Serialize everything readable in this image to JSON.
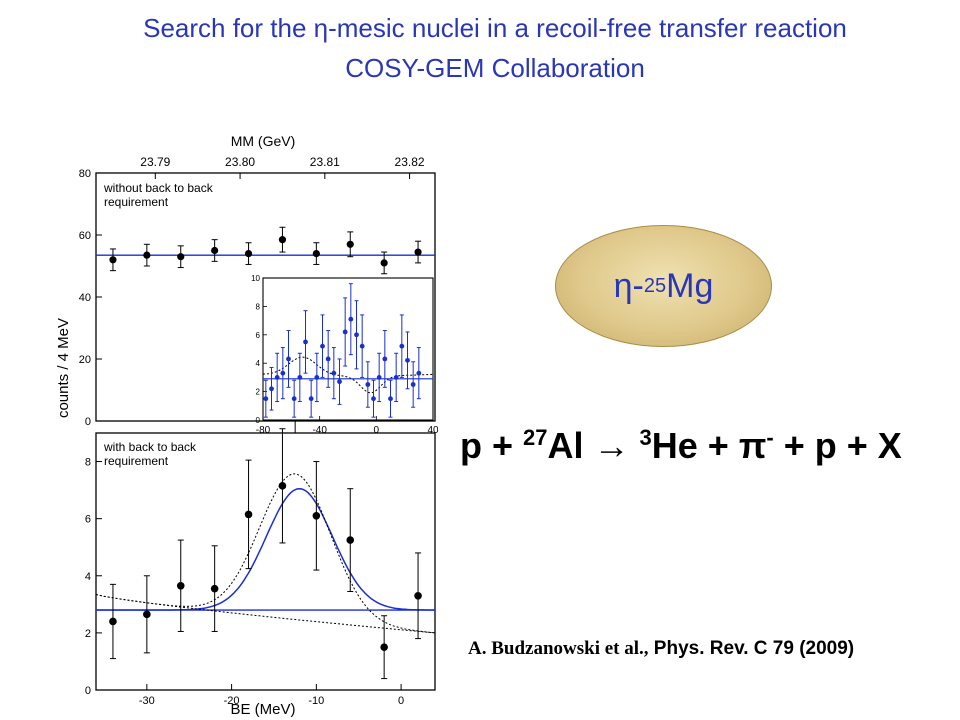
{
  "slide": {
    "title_line1": "Search for the η-mesic nuclei in a recoil-free transfer reaction",
    "title_line2": "COSY-GEM Collaboration",
    "oval": {
      "prefix": "η-",
      "mass": "25",
      "element": "Mg"
    },
    "reaction": {
      "p1": "p + ",
      "al_mass": "27",
      "p2": "Al → ",
      "he_mass": "3",
      "p3": "He + π",
      "pi_charge": "-",
      "p4": " + p + X"
    },
    "reference": {
      "authors": "A. Budzanowski et al.,",
      "journal": " Phys. Rev. C 79 (2009)"
    },
    "colors": {
      "title": "#2a36b8",
      "fit": "#1a2fd0",
      "inset_points": "#1a2fd0"
    }
  },
  "chart_data": [
    {
      "type": "scatter",
      "panel": "top",
      "annotation": "without back to back\nrequirement",
      "top_axis_label": "MM (GeV)",
      "top_ticks": [
        "23.79",
        "23.80",
        "23.81",
        "23.82"
      ],
      "ylabel": "counts / 4 MeV",
      "xlim": [
        -36,
        4
      ],
      "ylim": [
        0,
        80
      ],
      "yticks": [
        0,
        20,
        40,
        60,
        80
      ],
      "points": [
        {
          "x": -34,
          "y": 52,
          "err": 3.5
        },
        {
          "x": -30,
          "y": 53.5,
          "err": 3.5
        },
        {
          "x": -26,
          "y": 53,
          "err": 3.5
        },
        {
          "x": -22,
          "y": 55,
          "err": 3.5
        },
        {
          "x": -18,
          "y": 54,
          "err": 3.5
        },
        {
          "x": -14,
          "y": 58.5,
          "err": 4
        },
        {
          "x": -10,
          "y": 54,
          "err": 3.5
        },
        {
          "x": -6,
          "y": 57,
          "err": 4
        },
        {
          "x": -2,
          "y": 51,
          "err": 3.5
        },
        {
          "x": 2,
          "y": 54.5,
          "err": 3.5
        }
      ],
      "fit_level": 53.5
    },
    {
      "type": "scatter",
      "panel": "inset",
      "xlim": [
        -80,
        40
      ],
      "ylim": [
        0,
        10
      ],
      "xticks": [
        -80,
        -40,
        0,
        40
      ],
      "xtick_labels": [
        "-80",
        "-40",
        "0",
        "40"
      ],
      "yticks": [
        0,
        2,
        4,
        6,
        8,
        10
      ],
      "points": [
        {
          "x": -78,
          "y": 1.5,
          "err": 1.3
        },
        {
          "x": -74,
          "y": 2.2,
          "err": 1.5
        },
        {
          "x": -70,
          "y": 3,
          "err": 1.7
        },
        {
          "x": -66,
          "y": 3.3,
          "err": 1.8
        },
        {
          "x": -62,
          "y": 4.3,
          "err": 2
        },
        {
          "x": -58,
          "y": 1.5,
          "err": 1.3
        },
        {
          "x": -54,
          "y": 3,
          "err": 1.7
        },
        {
          "x": -50,
          "y": 5.5,
          "err": 2.2
        },
        {
          "x": -46,
          "y": 1.5,
          "err": 1.3
        },
        {
          "x": -42,
          "y": 3,
          "err": 1.7
        },
        {
          "x": -38,
          "y": 5.2,
          "err": 2.2
        },
        {
          "x": -34,
          "y": 4.3,
          "err": 2
        },
        {
          "x": -30,
          "y": 3.3,
          "err": 1.8
        },
        {
          "x": -26,
          "y": 2.7,
          "err": 1.6
        },
        {
          "x": -22,
          "y": 6.2,
          "err": 2.4
        },
        {
          "x": -18,
          "y": 7.1,
          "err": 2.5
        },
        {
          "x": -14,
          "y": 6,
          "err": 2.4
        },
        {
          "x": -10,
          "y": 5.2,
          "err": 2.2
        },
        {
          "x": -6,
          "y": 2.5,
          "err": 1.6
        },
        {
          "x": -2,
          "y": 1.5,
          "err": 1.3
        },
        {
          "x": 2,
          "y": 3,
          "err": 1.7
        },
        {
          "x": 6,
          "y": 4.3,
          "err": 2
        },
        {
          "x": 10,
          "y": 1.5,
          "err": 1.3
        },
        {
          "x": 14,
          "y": 3,
          "err": 1.7
        },
        {
          "x": 18,
          "y": 5.2,
          "err": 2.2
        },
        {
          "x": 22,
          "y": 4.2,
          "err": 2
        },
        {
          "x": 26,
          "y": 2.5,
          "err": 1.6
        },
        {
          "x": 30,
          "y": 3.3,
          "err": 1.8
        }
      ],
      "fit_level": 2.9
    },
    {
      "type": "scatter",
      "panel": "bottom",
      "annotation": "with back to back\nrequirement",
      "xlabel": "BE (MeV)",
      "xlim": [
        -36,
        4
      ],
      "ylim": [
        0,
        9
      ],
      "xticks": [
        -30,
        -20,
        -10,
        0
      ],
      "yticks": [
        0,
        2,
        4,
        6,
        8
      ],
      "points": [
        {
          "x": -34,
          "y": 2.4,
          "err": 1.3
        },
        {
          "x": -30,
          "y": 2.65,
          "err": 1.35
        },
        {
          "x": -26,
          "y": 3.65,
          "err": 1.6
        },
        {
          "x": -22,
          "y": 3.55,
          "err": 1.5
        },
        {
          "x": -18,
          "y": 6.15,
          "err": 1.9
        },
        {
          "x": -14,
          "y": 7.15,
          "err": 2
        },
        {
          "x": -10,
          "y": 6.1,
          "err": 1.9
        },
        {
          "x": -6,
          "y": 5.25,
          "err": 1.8
        },
        {
          "x": -2,
          "y": 1.5,
          "err": 1.1
        },
        {
          "x": 2,
          "y": 3.3,
          "err": 1.5
        }
      ],
      "fit": {
        "baseline": 2.8,
        "amplitude": 4.25,
        "center": -12,
        "sigma": 3.9
      },
      "dotted_fit": {
        "baseline_start": 3.35,
        "baseline_end": 2.0,
        "amplitude": 5.1,
        "center": -12.5,
        "sigma": 4.2
      }
    }
  ]
}
